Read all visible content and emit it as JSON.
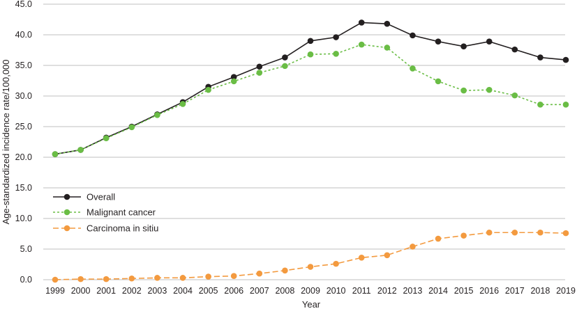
{
  "chart_data": {
    "type": "line",
    "xlabel": "Year",
    "ylabel": "Age-standardized incidence rate/100,000",
    "ylim": [
      0,
      45
    ],
    "yticks": [
      "0.0",
      "5.0",
      "10.0",
      "15.0",
      "20.0",
      "25.0",
      "30.0",
      "35.0",
      "40.0",
      "45.0"
    ],
    "grid": "horizontal",
    "legend_position": "center-left",
    "categories": [
      "1999",
      "2000",
      "2001",
      "2002",
      "2003",
      "2004",
      "2005",
      "2006",
      "2007",
      "2008",
      "2009",
      "2010",
      "2011",
      "2012",
      "2013",
      "2014",
      "2015",
      "2016",
      "2017",
      "2018",
      "2019"
    ],
    "series": [
      {
        "name": "Overall",
        "color": "#231f20",
        "line_style": "solid",
        "values": [
          20.5,
          21.2,
          23.2,
          25.0,
          27.0,
          29.0,
          31.5,
          33.1,
          34.8,
          36.3,
          39.0,
          39.6,
          42.0,
          41.8,
          39.9,
          38.9,
          38.1,
          38.9,
          37.6,
          36.3,
          35.9
        ]
      },
      {
        "name": "Malignant cancer",
        "color": "#6abd45",
        "line_style": "dotted",
        "values": [
          20.5,
          21.2,
          23.1,
          24.9,
          26.9,
          28.7,
          31.0,
          32.4,
          33.8,
          34.9,
          36.8,
          36.9,
          38.4,
          37.9,
          34.5,
          32.4,
          30.9,
          31.0,
          30.1,
          28.6,
          28.6
        ]
      },
      {
        "name": "Carcinoma in sitiu",
        "color": "#f39a3f",
        "line_style": "dashed",
        "values": [
          0.0,
          0.1,
          0.1,
          0.2,
          0.3,
          0.3,
          0.5,
          0.6,
          1.0,
          1.5,
          2.1,
          2.6,
          3.6,
          4.0,
          5.4,
          6.7,
          7.2,
          7.7,
          7.7,
          7.7,
          7.6
        ]
      }
    ]
  }
}
